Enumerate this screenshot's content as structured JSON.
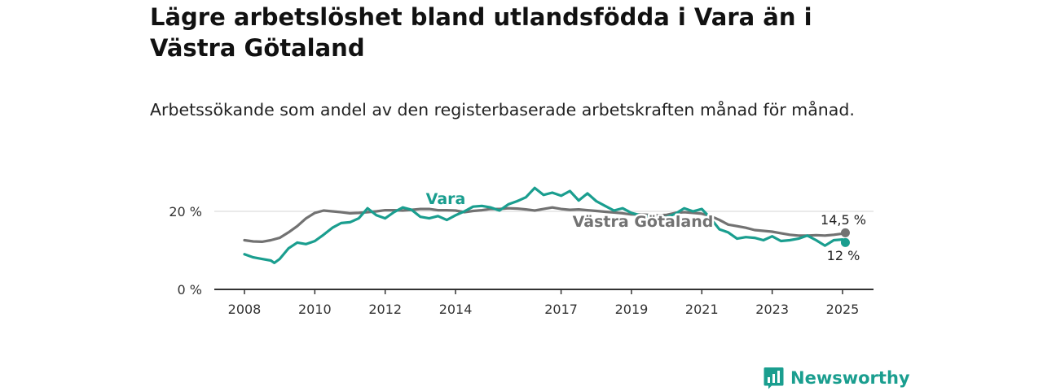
{
  "title": "Lägre arbetslöshet bland utlandsfödda i Vara än i Västra Götaland",
  "subtitle": "Arbetssökande som andel av den registerbaserade arbetskraften månad för månad.",
  "brand": {
    "name": "Newsworthy",
    "color": "#1a9e8f"
  },
  "chart_data": {
    "type": "line",
    "ylim": [
      0,
      25
    ],
    "xlim": [
      2008,
      2025.7
    ],
    "y_ticks": [
      {
        "value": 0,
        "label": "0 %"
      },
      {
        "value": 20,
        "label": "20 %"
      }
    ],
    "x_ticks": [
      {
        "value": 2008,
        "label": "2008"
      },
      {
        "value": 2010,
        "label": "2010"
      },
      {
        "value": 2012,
        "label": "2012"
      },
      {
        "value": 2014,
        "label": "2014"
      },
      {
        "value": 2017,
        "label": "2017"
      },
      {
        "value": 2019,
        "label": "2019"
      },
      {
        "value": 2021,
        "label": "2021"
      },
      {
        "value": 2023,
        "label": "2023"
      },
      {
        "value": 2025,
        "label": "2025"
      }
    ],
    "grid": "horizontal at 20 %",
    "series": [
      {
        "name": "Västra Götaland",
        "color": "#727272",
        "end_label": "14,5 %",
        "points": [
          [
            2008.0,
            12.6
          ],
          [
            2008.25,
            12.3
          ],
          [
            2008.5,
            12.2
          ],
          [
            2008.75,
            12.6
          ],
          [
            2009.0,
            13.2
          ],
          [
            2009.25,
            14.6
          ],
          [
            2009.5,
            16.2
          ],
          [
            2009.75,
            18.2
          ],
          [
            2010.0,
            19.6
          ],
          [
            2010.25,
            20.2
          ],
          [
            2010.5,
            20.0
          ],
          [
            2010.75,
            19.8
          ],
          [
            2011.0,
            19.5
          ],
          [
            2011.25,
            19.6
          ],
          [
            2011.5,
            19.8
          ],
          [
            2011.75,
            20.0
          ],
          [
            2012.0,
            20.3
          ],
          [
            2012.25,
            20.3
          ],
          [
            2012.5,
            20.2
          ],
          [
            2012.75,
            20.4
          ],
          [
            2013.0,
            20.6
          ],
          [
            2013.25,
            20.6
          ],
          [
            2013.5,
            20.3
          ],
          [
            2013.75,
            20.3
          ],
          [
            2014.0,
            20.2
          ],
          [
            2014.25,
            19.8
          ],
          [
            2014.5,
            20.1
          ],
          [
            2014.75,
            20.3
          ],
          [
            2015.0,
            20.6
          ],
          [
            2015.25,
            20.6
          ],
          [
            2015.5,
            20.8
          ],
          [
            2015.75,
            20.7
          ],
          [
            2016.0,
            20.5
          ],
          [
            2016.25,
            20.2
          ],
          [
            2016.5,
            20.6
          ],
          [
            2016.75,
            21.0
          ],
          [
            2017.0,
            20.6
          ],
          [
            2017.25,
            20.4
          ],
          [
            2017.5,
            20.5
          ],
          [
            2017.75,
            20.3
          ],
          [
            2018.0,
            20.1
          ],
          [
            2018.25,
            19.9
          ],
          [
            2018.5,
            19.7
          ],
          [
            2018.75,
            19.5
          ],
          [
            2019.0,
            19.2
          ],
          [
            2019.25,
            19.2
          ],
          [
            2019.5,
            19.1
          ],
          [
            2019.75,
            19.0
          ],
          [
            2020.0,
            19.1
          ],
          [
            2020.25,
            19.6
          ],
          [
            2020.5,
            19.8
          ],
          [
            2020.75,
            19.6
          ],
          [
            2021.0,
            19.4
          ],
          [
            2021.25,
            18.8
          ],
          [
            2021.5,
            17.8
          ],
          [
            2021.75,
            16.6
          ],
          [
            2022.0,
            16.2
          ],
          [
            2022.25,
            15.8
          ],
          [
            2022.5,
            15.2
          ],
          [
            2022.75,
            15.0
          ],
          [
            2023.0,
            14.8
          ],
          [
            2023.25,
            14.4
          ],
          [
            2023.5,
            14.0
          ],
          [
            2023.75,
            13.8
          ],
          [
            2024.0,
            13.8
          ],
          [
            2024.25,
            13.9
          ],
          [
            2024.5,
            13.8
          ],
          [
            2024.75,
            14.0
          ],
          [
            2025.0,
            14.3
          ],
          [
            2025.08,
            14.5
          ]
        ]
      },
      {
        "name": "Vara",
        "color": "#1a9e8f",
        "end_label": "12 %",
        "points": [
          [
            2008.0,
            9.0
          ],
          [
            2008.25,
            8.2
          ],
          [
            2008.5,
            7.8
          ],
          [
            2008.75,
            7.4
          ],
          [
            2008.85,
            6.8
          ],
          [
            2009.0,
            7.8
          ],
          [
            2009.25,
            10.5
          ],
          [
            2009.5,
            12.0
          ],
          [
            2009.75,
            11.6
          ],
          [
            2010.0,
            12.4
          ],
          [
            2010.25,
            14.0
          ],
          [
            2010.5,
            15.8
          ],
          [
            2010.75,
            17.0
          ],
          [
            2011.0,
            17.2
          ],
          [
            2011.25,
            18.2
          ],
          [
            2011.5,
            20.8
          ],
          [
            2011.75,
            19.0
          ],
          [
            2012.0,
            18.2
          ],
          [
            2012.25,
            19.8
          ],
          [
            2012.5,
            21.0
          ],
          [
            2012.75,
            20.4
          ],
          [
            2013.0,
            18.6
          ],
          [
            2013.25,
            18.2
          ],
          [
            2013.5,
            18.8
          ],
          [
            2013.75,
            17.8
          ],
          [
            2014.0,
            19.0
          ],
          [
            2014.25,
            20.0
          ],
          [
            2014.5,
            21.2
          ],
          [
            2014.75,
            21.4
          ],
          [
            2015.0,
            21.0
          ],
          [
            2015.25,
            20.2
          ],
          [
            2015.5,
            21.8
          ],
          [
            2015.75,
            22.6
          ],
          [
            2016.0,
            23.6
          ],
          [
            2016.25,
            26.0
          ],
          [
            2016.5,
            24.2
          ],
          [
            2016.75,
            24.8
          ],
          [
            2017.0,
            24.0
          ],
          [
            2017.25,
            25.2
          ],
          [
            2017.5,
            22.8
          ],
          [
            2017.75,
            24.6
          ],
          [
            2018.0,
            22.6
          ],
          [
            2018.25,
            21.4
          ],
          [
            2018.5,
            20.2
          ],
          [
            2018.75,
            20.8
          ],
          [
            2019.0,
            19.6
          ],
          [
            2019.25,
            19.0
          ],
          [
            2019.5,
            18.6
          ],
          [
            2019.75,
            18.4
          ],
          [
            2020.0,
            18.5
          ],
          [
            2020.25,
            19.4
          ],
          [
            2020.5,
            20.8
          ],
          [
            2020.75,
            20.0
          ],
          [
            2021.0,
            20.6
          ],
          [
            2021.25,
            18.2
          ],
          [
            2021.5,
            15.4
          ],
          [
            2021.75,
            14.6
          ],
          [
            2022.0,
            13.0
          ],
          [
            2022.25,
            13.4
          ],
          [
            2022.5,
            13.2
          ],
          [
            2022.75,
            12.6
          ],
          [
            2023.0,
            13.6
          ],
          [
            2023.25,
            12.4
          ],
          [
            2023.5,
            12.6
          ],
          [
            2023.75,
            13.0
          ],
          [
            2024.0,
            13.8
          ],
          [
            2024.25,
            12.6
          ],
          [
            2024.5,
            11.2
          ],
          [
            2024.75,
            12.6
          ],
          [
            2025.0,
            12.8
          ],
          [
            2025.08,
            12.0
          ]
        ]
      }
    ]
  }
}
